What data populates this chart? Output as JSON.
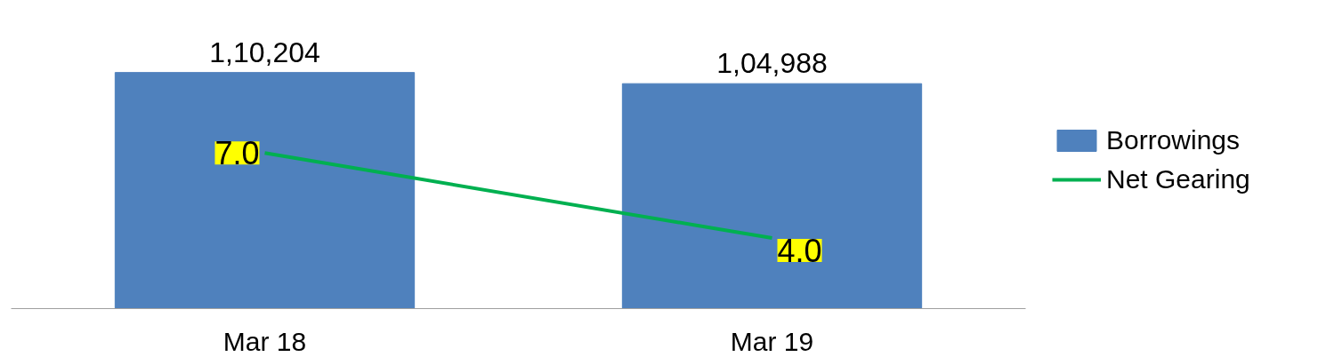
{
  "chart_data": {
    "type": "bar",
    "categories": [
      "Mar 18",
      "Mar 19"
    ],
    "tick_labels": "x",
    "grid": false,
    "legend": "right",
    "series": [
      {
        "name": "Borrowings",
        "color": "#4f81bd",
        "values": [
          110204,
          104988
        ],
        "value_labels": [
          "1,10,204",
          "1,04,988"
        ]
      },
      {
        "name": "Net Gearing",
        "type": "line",
        "axis": "y2",
        "color": "#00b050",
        "values": [
          7.0,
          4.0
        ],
        "value_labels": [
          "7.0",
          "4.0"
        ]
      }
    ]
  }
}
